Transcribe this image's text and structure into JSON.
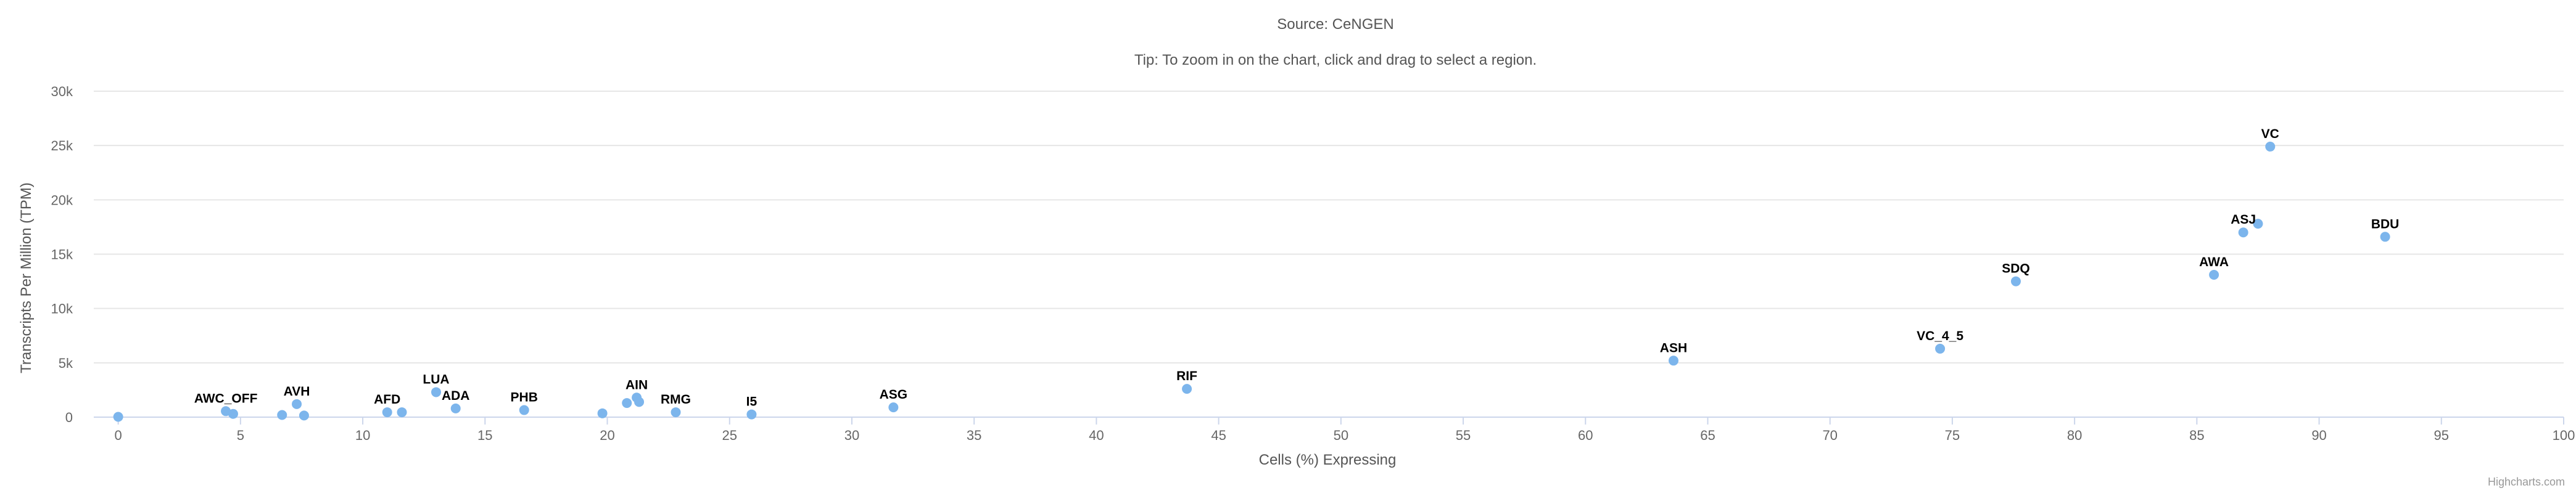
{
  "chart_data": {
    "type": "scatter",
    "subtitle_lines": [
      "Source: CeNGEN",
      "Tip: To zoom in on the chart, click and drag to select a region."
    ],
    "xlabel": "Cells (%) Expressing",
    "ylabel": "Transcripts Per Million (TPM)",
    "xlim": [
      -1,
      100
    ],
    "ylim": [
      0,
      30000
    ],
    "x_ticks": [
      0,
      5,
      10,
      15,
      20,
      25,
      30,
      35,
      40,
      45,
      50,
      55,
      60,
      65,
      70,
      75,
      80,
      85,
      90,
      95,
      100
    ],
    "x_tick_labels": [
      "0",
      "5",
      "10",
      "15",
      "20",
      "25",
      "30",
      "35",
      "40",
      "45",
      "50",
      "55",
      "60",
      "65",
      "70",
      "75",
      "80",
      "85",
      "90",
      "95",
      "100"
    ],
    "y_ticks": [
      0,
      5000,
      10000,
      15000,
      20000,
      25000,
      30000
    ],
    "y_tick_labels": [
      "0",
      "5k",
      "10k",
      "15k",
      "20k",
      "25k",
      "30k"
    ],
    "grid": true,
    "point_color": "#7cb5ec",
    "points": [
      {
        "x": 0,
        "y": 30,
        "label": ""
      },
      {
        "x": 4.4,
        "y": 550,
        "label": "AWC_OFF"
      },
      {
        "x": 4.7,
        "y": 300,
        "label": ""
      },
      {
        "x": 6.7,
        "y": 200,
        "label": ""
      },
      {
        "x": 7.3,
        "y": 1200,
        "label": "AVH"
      },
      {
        "x": 7.6,
        "y": 150,
        "label": ""
      },
      {
        "x": 11.0,
        "y": 450,
        "label": "AFD"
      },
      {
        "x": 11.6,
        "y": 450,
        "label": ""
      },
      {
        "x": 13.0,
        "y": 2300,
        "label": "LUA"
      },
      {
        "x": 13.8,
        "y": 800,
        "label": "ADA"
      },
      {
        "x": 16.6,
        "y": 650,
        "label": "PHB"
      },
      {
        "x": 19.8,
        "y": 350,
        "label": ""
      },
      {
        "x": 20.8,
        "y": 1300,
        "label": ""
      },
      {
        "x": 21.2,
        "y": 1800,
        "label": "AIN"
      },
      {
        "x": 21.3,
        "y": 1400,
        "label": ""
      },
      {
        "x": 22.8,
        "y": 450,
        "label": "RMG"
      },
      {
        "x": 25.9,
        "y": 250,
        "label": "I5"
      },
      {
        "x": 31.7,
        "y": 900,
        "label": "ASG"
      },
      {
        "x": 43.7,
        "y": 2600,
        "label": "RIF"
      },
      {
        "x": 63.6,
        "y": 5200,
        "label": "ASH"
      },
      {
        "x": 74.5,
        "y": 6300,
        "label": "VC_4_5"
      },
      {
        "x": 77.6,
        "y": 12500,
        "label": "SDQ"
      },
      {
        "x": 85.7,
        "y": 13100,
        "label": "AWA"
      },
      {
        "x": 86.9,
        "y": 17000,
        "label": "ASJ"
      },
      {
        "x": 87.5,
        "y": 17800,
        "label": ""
      },
      {
        "x": 88.0,
        "y": 24900,
        "label": "VC"
      },
      {
        "x": 92.7,
        "y": 16600,
        "label": "BDU"
      }
    ]
  },
  "credits": "Highcharts.com"
}
